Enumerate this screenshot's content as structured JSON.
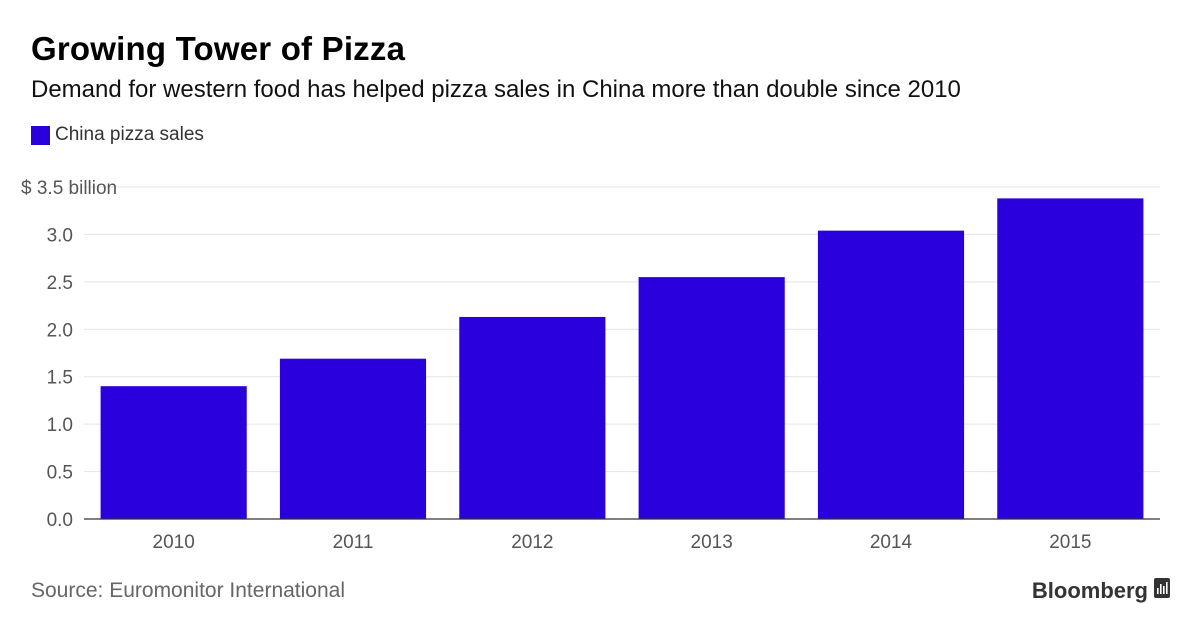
{
  "title": "Growing Tower of Pizza",
  "subtitle": "Demand for western food has helped pizza sales in China more than double since 2010",
  "legend": {
    "label": "China pizza sales",
    "color": "#2a00dd"
  },
  "source": "Source: Euromonitor International",
  "brand": "Bloomberg",
  "brand_icon": "bloomberg-terminal-icon",
  "chart_data": {
    "type": "bar",
    "title": "Growing Tower of Pizza",
    "subtitle": "Demand for western food has helped pizza sales in China more than double since 2010",
    "categories": [
      "2010",
      "2011",
      "2012",
      "2013",
      "2014",
      "2015"
    ],
    "series": [
      {
        "name": "China pizza sales",
        "color": "#2a00dd",
        "values": [
          1.4,
          1.69,
          2.13,
          2.55,
          3.04,
          3.38
        ]
      }
    ],
    "ylim": [
      0,
      3.5
    ],
    "yticks": [
      0.0,
      0.5,
      1.0,
      1.5,
      2.0,
      2.5,
      3.0,
      3.5
    ],
    "ytick_labels": [
      "0.0",
      "0.5",
      "1.0",
      "1.5",
      "2.0",
      "2.5",
      "3.0",
      "$ 3.5 billion"
    ],
    "grid": true,
    "legend_position": "top-left",
    "xlabel": "",
    "ylabel": ""
  }
}
